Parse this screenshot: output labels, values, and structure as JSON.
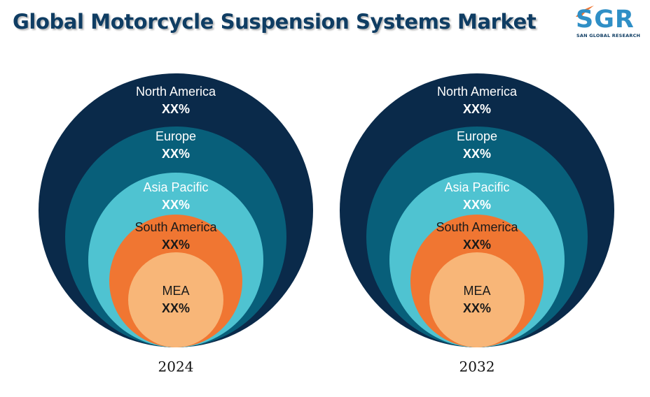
{
  "header": {
    "title": "Global Motorcycle Suspension Systems Market"
  },
  "logo": {
    "mark": "SGR",
    "tagline": "SAN GLOBAL RESEARCH",
    "icon": "swoosh-flame-icon"
  },
  "colors": {
    "title": "#0f3d63",
    "ring_1": "#0a2a4a",
    "ring_2": "#085f7a",
    "ring_3": "#4fc3d1",
    "ring_4": "#f07632",
    "ring_5": "#f8b678",
    "logo_accent": "#2f8fc6",
    "logo_orange": "#f07632"
  },
  "chart_data": [
    {
      "type": "nested-circle",
      "year_label": "2024",
      "segments": [
        {
          "label": "North America",
          "value": "XX%"
        },
        {
          "label": "Europe",
          "value": "XX%"
        },
        {
          "label": "Asia Pacific",
          "value": "XX%"
        },
        {
          "label": "South America",
          "value": "XX%"
        },
        {
          "label": "MEA",
          "value": "XX%"
        }
      ]
    },
    {
      "type": "nested-circle",
      "year_label": "2032",
      "segments": [
        {
          "label": "North America",
          "value": "XX%"
        },
        {
          "label": "Europe",
          "value": "XX%"
        },
        {
          "label": "Asia Pacific",
          "value": "XX%"
        },
        {
          "label": "South America",
          "value": "XX%"
        },
        {
          "label": "MEA",
          "value": "XX%"
        }
      ]
    }
  ]
}
